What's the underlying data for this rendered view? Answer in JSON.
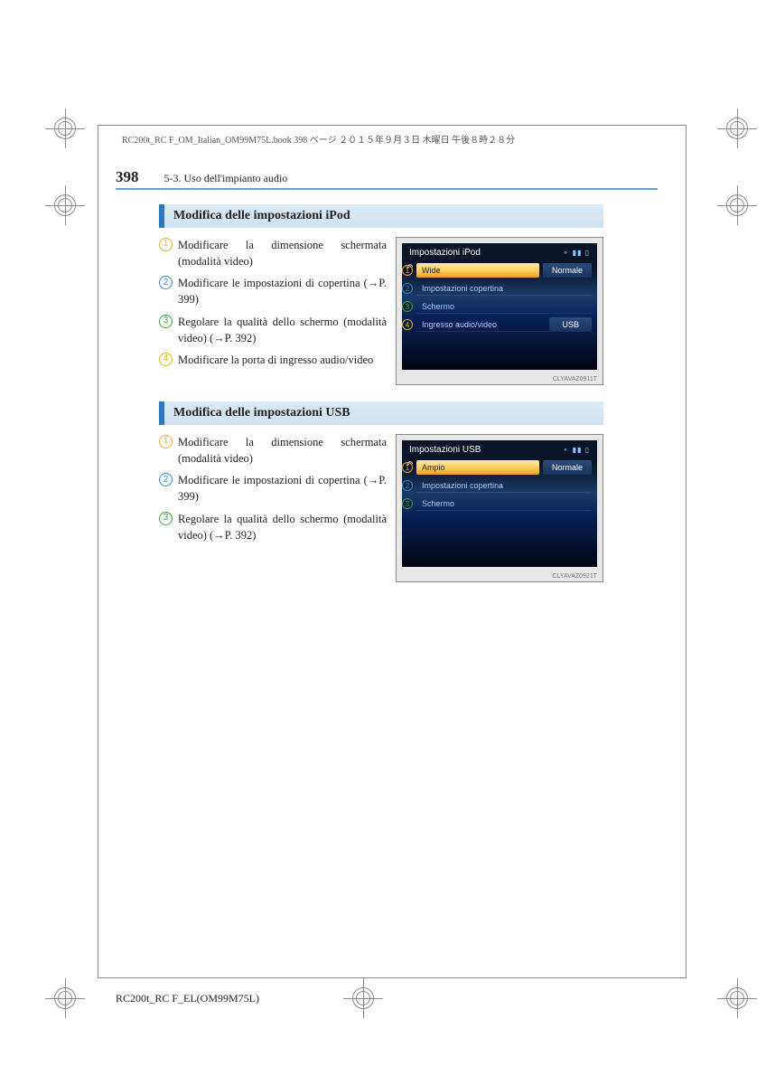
{
  "meta_line": "RC200t_RC F_OM_Italian_OM99M75L.book  398 ページ  ２０１５年９月３日  木曜日  午後８時２８分",
  "page_number": "398",
  "section_header": "5-3. Uso dell'impianto audio",
  "footer": "RC200t_RC F_EL(OM99M75L)",
  "sections": [
    {
      "heading": "Modifica delle impostazioni iPod",
      "items": [
        {
          "n": "1",
          "cls": "nb-orange",
          "text": "Modificare la dimensione schermata (modalità video)"
        },
        {
          "n": "2",
          "cls": "nb-blue",
          "text": "Modificare le impostazioni di copertina (→P. 399)"
        },
        {
          "n": "3",
          "cls": "nb-green",
          "text": "Regolare la qualità dello schermo (modalità video) (→P. 392)"
        },
        {
          "n": "4",
          "cls": "nb-yellow",
          "text": "Modificare la porta di ingresso audio/video"
        }
      ],
      "screen": {
        "title": "Impostazioni iPod",
        "credit": "CLYAVAZ0911T",
        "rows": [
          {
            "n": "1",
            "cls": "nb-orange",
            "type": "toggle",
            "sel": "Wide",
            "unsel": "Normale"
          },
          {
            "n": "2",
            "cls": "nb-blue",
            "type": "plain",
            "label": "Impostazioni copertina"
          },
          {
            "n": "3",
            "cls": "nb-green",
            "type": "plain",
            "label": "Schermo"
          },
          {
            "n": "4",
            "cls": "nb-yellow",
            "type": "value",
            "label": "Ingresso audio/video",
            "value": "USB"
          }
        ]
      }
    },
    {
      "heading": "Modifica delle impostazioni USB",
      "items": [
        {
          "n": "1",
          "cls": "nb-orange",
          "text": "Modificare la dimensione schermata (modalità video)"
        },
        {
          "n": "2",
          "cls": "nb-blue",
          "text": "Modificare le impostazioni di copertina (→P. 399)"
        },
        {
          "n": "3",
          "cls": "nb-green",
          "text": "Regolare la qualità dello schermo (modalità video) (→P. 392)"
        }
      ],
      "screen": {
        "title": "Impostazioni USB",
        "credit": "CLYAVAZ0921T",
        "rows": [
          {
            "n": "1",
            "cls": "nb-orange",
            "type": "toggle",
            "sel": "Ampio",
            "unsel": "Normale"
          },
          {
            "n": "2",
            "cls": "nb-blue",
            "type": "plain",
            "label": "Impostazioni copertina"
          },
          {
            "n": "3",
            "cls": "nb-green",
            "type": "plain",
            "label": "Schermo"
          }
        ]
      }
    }
  ]
}
